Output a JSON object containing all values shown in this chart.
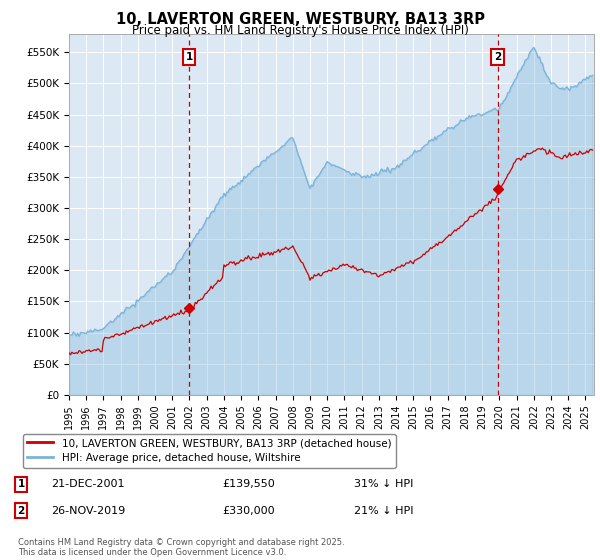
{
  "title": "10, LAVERTON GREEN, WESTBURY, BA13 3RP",
  "subtitle": "Price paid vs. HM Land Registry's House Price Index (HPI)",
  "background_color": "#dce9f5",
  "ylim": [
    0,
    580000
  ],
  "yticks": [
    0,
    50000,
    100000,
    150000,
    200000,
    250000,
    300000,
    350000,
    400000,
    450000,
    500000,
    550000
  ],
  "ytick_labels": [
    "£0",
    "£50K",
    "£100K",
    "£150K",
    "£200K",
    "£250K",
    "£300K",
    "£350K",
    "£400K",
    "£450K",
    "£500K",
    "£550K"
  ],
  "hpi_color": "#7ab3d8",
  "price_color": "#cc0000",
  "vline_color": "#cc0000",
  "annotation_box_color": "#cc0000",
  "sale1_x": 2001.97,
  "sale1_price": 139550,
  "sale2_x": 2019.9,
  "sale2_price": 330000,
  "legend_label1": "10, LAVERTON GREEN, WESTBURY, BA13 3RP (detached house)",
  "legend_label2": "HPI: Average price, detached house, Wiltshire",
  "sale1_date": "21-DEC-2001",
  "sale1_amount": "£139,550",
  "sale1_pct": "31% ↓ HPI",
  "sale2_date": "26-NOV-2019",
  "sale2_amount": "£330,000",
  "sale2_pct": "21% ↓ HPI",
  "footer": "Contains HM Land Registry data © Crown copyright and database right 2025.\nThis data is licensed under the Open Government Licence v3.0."
}
